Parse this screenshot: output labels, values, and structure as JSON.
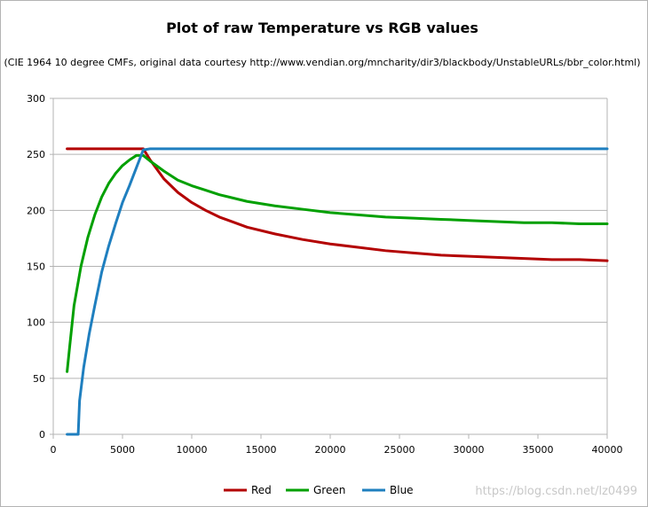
{
  "chart_data": {
    "type": "line",
    "title": "Plot of raw Temperature vs RGB values",
    "subtitle": "(CIE 1964 10 degree CMFs, original data courtesy http://www.vendian.org/mncharity/dir3/blackbody/UnstableURLs/bbr_color.html)",
    "xlabel": "",
    "ylabel": "",
    "xlim": [
      0,
      40000
    ],
    "ylim": [
      0,
      300
    ],
    "x_ticks": [
      0,
      5000,
      10000,
      15000,
      20000,
      25000,
      30000,
      35000,
      40000
    ],
    "y_ticks": [
      0,
      50,
      100,
      150,
      200,
      250,
      300
    ],
    "grid": "horizontal",
    "legend_position": "bottom",
    "series": [
      {
        "name": "Red",
        "color": "#b30000",
        "x": [
          1000,
          2000,
          3000,
          4000,
          5000,
          6000,
          6500,
          7000,
          8000,
          9000,
          10000,
          11000,
          12000,
          14000,
          16000,
          18000,
          20000,
          22000,
          24000,
          26000,
          28000,
          30000,
          32000,
          34000,
          36000,
          38000,
          40000
        ],
        "y": [
          255,
          255,
          255,
          255,
          255,
          255,
          255,
          245,
          228,
          216,
          207,
          200,
          194,
          185,
          179,
          174,
          170,
          167,
          164,
          162,
          160,
          159,
          158,
          157,
          156,
          156,
          155
        ]
      },
      {
        "name": "Green",
        "color": "#00a000",
        "x": [
          1000,
          1200,
          1500,
          2000,
          2500,
          3000,
          3500,
          4000,
          4500,
          5000,
          5500,
          6000,
          6500,
          7000,
          8000,
          9000,
          10000,
          11000,
          12000,
          14000,
          16000,
          18000,
          20000,
          22000,
          24000,
          26000,
          28000,
          30000,
          32000,
          34000,
          36000,
          38000,
          40000
        ],
        "y": [
          56,
          80,
          115,
          150,
          176,
          196,
          212,
          224,
          233,
          240,
          245,
          249,
          249,
          244,
          235,
          227,
          222,
          218,
          214,
          208,
          204,
          201,
          198,
          196,
          194,
          193,
          192,
          191,
          190,
          189,
          189,
          188,
          188
        ]
      },
      {
        "name": "Blue",
        "color": "#1f7fbf",
        "x": [
          1000,
          1800,
          1900,
          2200,
          2600,
          3000,
          3500,
          4000,
          4500,
          5000,
          5500,
          6000,
          6500,
          7000,
          10000,
          20000,
          30000,
          40000
        ],
        "y": [
          0,
          0,
          30,
          60,
          90,
          115,
          145,
          168,
          188,
          207,
          222,
          238,
          254,
          255,
          255,
          255,
          255,
          255
        ]
      }
    ]
  },
  "watermark": "https://blog.csdn.net/lz0499"
}
